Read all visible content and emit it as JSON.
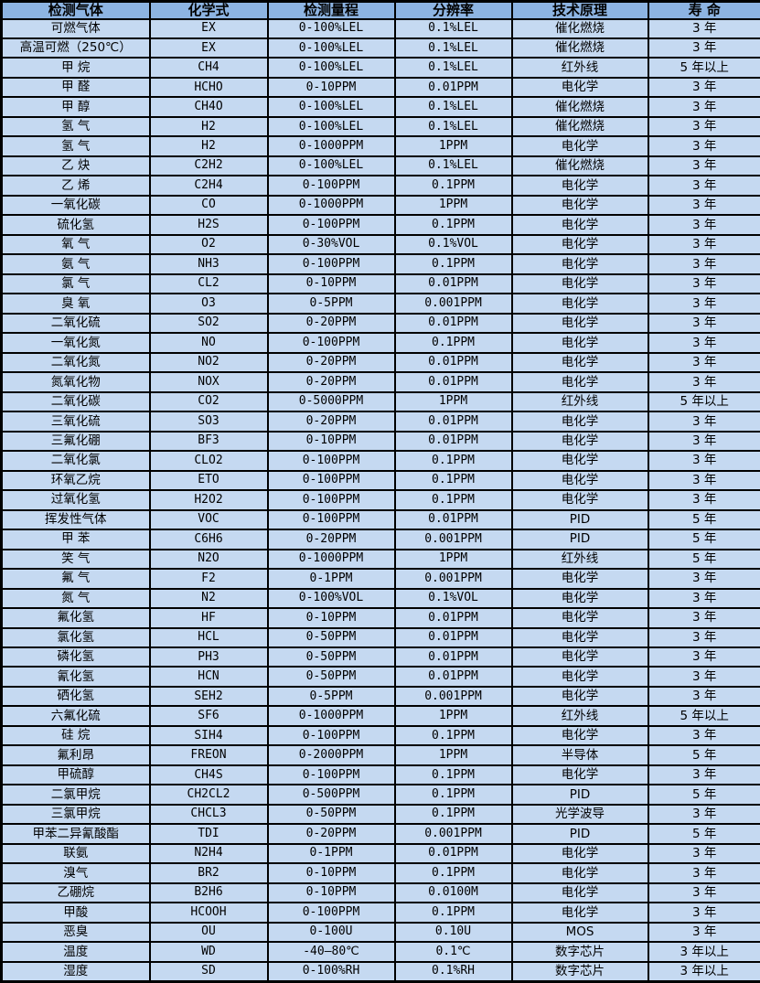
{
  "colors": {
    "header_bg": "#8DB4E2",
    "row_bg": "#C5D9F1",
    "border": "#000000",
    "text": "#000000"
  },
  "table": {
    "headers": [
      "检测气体",
      "化学式",
      "检测量程",
      "分辨率",
      "技术原理",
      "寿 命"
    ],
    "column_keys": [
      "gas-name",
      "chemical-formula",
      "detection-range",
      "resolution",
      "technical-principle",
      "lifespan"
    ],
    "rows": [
      [
        "可燃气体",
        "EX",
        "0-100%LEL",
        "0.1%LEL",
        "催化燃烧",
        "3 年"
      ],
      [
        "高温可燃（250℃）",
        "EX",
        "0-100%LEL",
        "0.1%LEL",
        "催化燃烧",
        "3 年"
      ],
      [
        "甲 烷",
        "CH4",
        "0-100%LEL",
        "0.1%LEL",
        "红外线",
        "5 年以上"
      ],
      [
        "甲 醛",
        "HCHO",
        "0-10PPM",
        "0.01PPM",
        "电化学",
        "3 年"
      ],
      [
        "甲 醇",
        "CH4O",
        "0-100%LEL",
        "0.1%LEL",
        "催化燃烧",
        "3 年"
      ],
      [
        "氢 气",
        "H2",
        "0-100%LEL",
        "0.1%LEL",
        "催化燃烧",
        "3 年"
      ],
      [
        "氢 气",
        "H2",
        "0-1000PPM",
        "1PPM",
        "电化学",
        "3 年"
      ],
      [
        "乙 炔",
        "C2H2",
        "0-100%LEL",
        "0.1%LEL",
        "催化燃烧",
        "3 年"
      ],
      [
        "乙 烯",
        "C2H4",
        "0-100PPM",
        "0.1PPM",
        "电化学",
        "3 年"
      ],
      [
        "一氧化碳",
        "CO",
        "0-1000PPM",
        "1PPM",
        "电化学",
        "3 年"
      ],
      [
        "硫化氢",
        "H2S",
        "0-100PPM",
        "0.1PPM",
        "电化学",
        "3 年"
      ],
      [
        "氧 气",
        "O2",
        "0-30%VOL",
        "0.1%VOL",
        "电化学",
        "3 年"
      ],
      [
        "氨 气",
        "NH3",
        "0-100PPM",
        "0.1PPM",
        "电化学",
        "3 年"
      ],
      [
        "氯 气",
        "CL2",
        "0-10PPM",
        "0.01PPM",
        "电化学",
        "3 年"
      ],
      [
        "臭 氧",
        "O3",
        "0-5PPM",
        "0.001PPM",
        "电化学",
        "3 年"
      ],
      [
        "二氧化硫",
        "SO2",
        "0-20PPM",
        "0.01PPM",
        "电化学",
        "3 年"
      ],
      [
        "一氧化氮",
        "NO",
        "0-100PPM",
        "0.1PPM",
        "电化学",
        "3 年"
      ],
      [
        "二氧化氮",
        "NO2",
        "0-20PPM",
        "0.01PPM",
        "电化学",
        "3 年"
      ],
      [
        "氮氧化物",
        "NOX",
        "0-20PPM",
        "0.01PPM",
        "电化学",
        "3 年"
      ],
      [
        "二氧化碳",
        "CO2",
        "0-5000PPM",
        "1PPM",
        "红外线",
        "5 年以上"
      ],
      [
        "三氧化硫",
        "SO3",
        "0-20PPM",
        "0.01PPM",
        "电化学",
        "3 年"
      ],
      [
        "三氟化硼",
        "BF3",
        "0-10PPM",
        "0.01PPM",
        "电化学",
        "3 年"
      ],
      [
        "二氧化氯",
        "CLO2",
        "0-100PPM",
        "0.1PPM",
        "电化学",
        "3 年"
      ],
      [
        "环氧乙烷",
        "ETO",
        "0-100PPM",
        "0.1PPM",
        "电化学",
        "3 年"
      ],
      [
        "过氧化氢",
        "H2O2",
        "0-100PPM",
        "0.1PPM",
        "电化学",
        "3 年"
      ],
      [
        "挥发性气体",
        "VOC",
        "0-100PPM",
        "0.01PPM",
        "PID",
        "5 年"
      ],
      [
        "甲 苯",
        "C6H6",
        "0-20PPM",
        "0.001PPM",
        "PID",
        "5 年"
      ],
      [
        "笑 气",
        "N2O",
        "0-1000PPM",
        "1PPM",
        "红外线",
        "5 年"
      ],
      [
        "氟 气",
        "F2",
        "0-1PPM",
        "0.001PPM",
        "电化学",
        "3 年"
      ],
      [
        "氮 气",
        "N2",
        "0-100%VOL",
        "0.1%VOL",
        "电化学",
        "3 年"
      ],
      [
        "氟化氢",
        "HF",
        "0-10PPM",
        "0.01PPM",
        "电化学",
        "3 年"
      ],
      [
        "氯化氢",
        "HCL",
        "0-50PPM",
        "0.01PPM",
        "电化学",
        "3 年"
      ],
      [
        "磷化氢",
        "PH3",
        "0-50PPM",
        "0.01PPM",
        "电化学",
        "3 年"
      ],
      [
        "氰化氢",
        "HCN",
        "0-50PPM",
        "0.01PPM",
        "电化学",
        "3 年"
      ],
      [
        "硒化氢",
        "SEH2",
        "0-5PPM",
        "0.001PPM",
        "电化学",
        "3 年"
      ],
      [
        "六氟化硫",
        "SF6",
        "0-1000PPM",
        "1PPM",
        "红外线",
        "5 年以上"
      ],
      [
        "硅 烷",
        "SIH4",
        "0-100PPM",
        "0.1PPM",
        "电化学",
        "3 年"
      ],
      [
        "氟利昂",
        "FREON",
        "0-2000PPM",
        "1PPM",
        "半导体",
        "5 年"
      ],
      [
        "甲硫醇",
        "CH4S",
        "0-100PPM",
        "0.1PPM",
        "电化学",
        "3 年"
      ],
      [
        "二氯甲烷",
        "CH2CL2",
        "0-500PPM",
        "0.1PPM",
        "PID",
        "5 年"
      ],
      [
        "三氯甲烷",
        "CHCL3",
        "0-50PPM",
        "0.1PPM",
        "光学波导",
        "3 年"
      ],
      [
        "甲苯二异氰酸酯",
        "TDI",
        "0-20PPM",
        "0.001PPM",
        "PID",
        "5 年"
      ],
      [
        "联氨",
        "N2H4",
        "0-1PPM",
        "0.01PPM",
        "电化学",
        "3 年"
      ],
      [
        "溴气",
        "BR2",
        "0-10PPM",
        "0.1PPM",
        "电化学",
        "3 年"
      ],
      [
        "乙硼烷",
        "B2H6",
        "0-10PPM",
        "0.0100M",
        "电化学",
        "3 年"
      ],
      [
        "甲酸",
        "HCOOH",
        "0-100PPM",
        "0.1PPM",
        "电化学",
        "3 年"
      ],
      [
        "恶臭",
        "OU",
        "0-100U",
        "0.10U",
        "MOS",
        "3 年"
      ],
      [
        "温度",
        "WD",
        "-40—80℃",
        "0.1℃",
        "数字芯片",
        "3 年以上"
      ],
      [
        "湿度",
        "SD",
        "0-100%RH",
        "0.1%RH",
        "数字芯片",
        "3 年以上"
      ]
    ]
  }
}
